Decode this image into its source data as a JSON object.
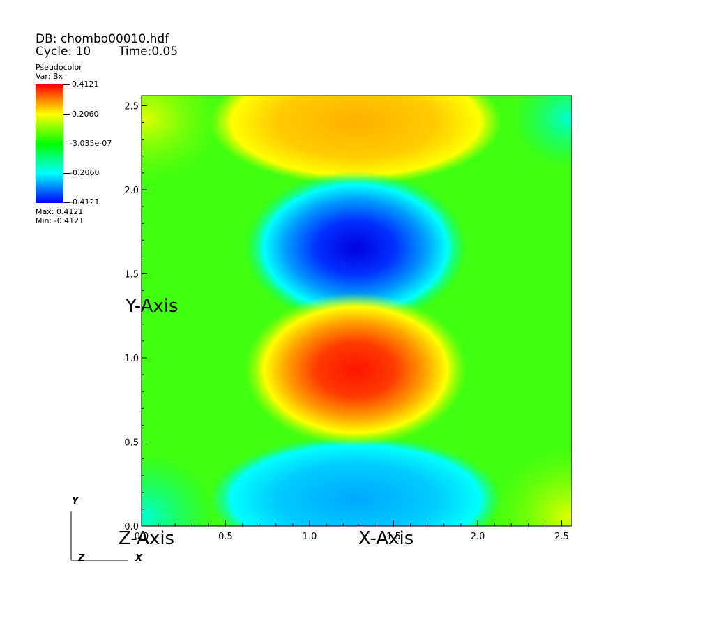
{
  "header": {
    "db_line": "DB: chombo00010.hdf",
    "cycle_line": "Cycle: 10",
    "time_line": "Time:0.05"
  },
  "legend": {
    "plot_type": "Pseudocolor",
    "var_line": "Var: Bx",
    "labels": [
      "0.4121",
      "0.2060",
      "-3.035e-07",
      "-0.2060",
      "-0.4121"
    ],
    "max_line": "Max:  0.4121",
    "min_line": "Min: -0.4121",
    "colors": [
      "#ff0000",
      "#ffff00",
      "#00ff00",
      "#00ffff",
      "#0000ff"
    ]
  },
  "triad": {
    "y": "Y",
    "z": "Z",
    "x": "X"
  },
  "chart_data": {
    "type": "heatmap",
    "variable": "Bx",
    "xlabel": "X-Axis",
    "ylabel": "Y-Axis",
    "zlabel": "Z-Axis",
    "xlim": [
      0.0,
      2.56
    ],
    "ylim": [
      0.0,
      2.56
    ],
    "xticks": [
      0.0,
      0.5,
      1.0,
      1.5,
      2.0,
      2.5
    ],
    "yticks": [
      0.0,
      0.5,
      1.0,
      1.5,
      2.0,
      2.5
    ],
    "xtick_labels": [
      "0.0",
      "0.5",
      "1.0",
      "1.5",
      "2.0",
      "2.5"
    ],
    "ytick_labels": [
      "0.0",
      "0.5",
      "1.0",
      "1.5",
      "2.0",
      "2.5"
    ],
    "value_range": [
      -0.4121,
      0.4121
    ],
    "features": [
      {
        "kind": "minimum",
        "x": 1.28,
        "y": 1.65,
        "value": -0.4121
      },
      {
        "kind": "maximum",
        "x": 1.28,
        "y": 0.92,
        "value": 0.4121
      },
      {
        "kind": "positive_band",
        "x": 1.28,
        "y": 2.45,
        "value": 0.25
      },
      {
        "kind": "negative_band",
        "x": 1.28,
        "y": 0.15,
        "value": -0.22
      }
    ]
  }
}
